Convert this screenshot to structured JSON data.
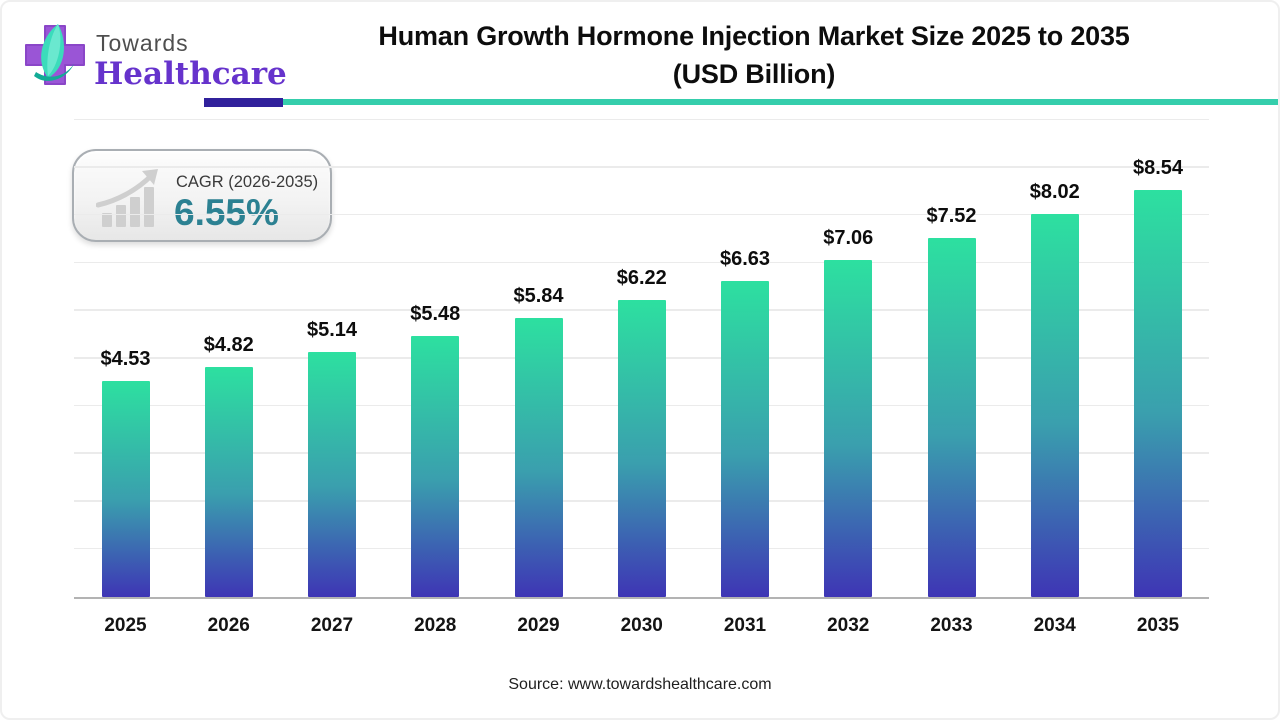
{
  "header": {
    "logo_line1": "Towards",
    "logo_line2": "Healthcare",
    "title_line1": "Human Growth Hormone Injection Market Size 2025 to 2035",
    "title_line2": "(USD Billion)"
  },
  "badge": {
    "label": "CAGR (2026-2035)",
    "value": "6.55%"
  },
  "chart_data": {
    "type": "bar",
    "title": "Human Growth Hormone Injection Market Size 2025 to 2035 (USD Billion)",
    "categories": [
      "2025",
      "2026",
      "2027",
      "2028",
      "2029",
      "2030",
      "2031",
      "2032",
      "2033",
      "2034",
      "2035"
    ],
    "values": [
      4.53,
      4.82,
      5.14,
      5.48,
      5.84,
      6.22,
      6.63,
      7.06,
      7.52,
      8.02,
      8.54
    ],
    "value_prefix": "$",
    "value_decimals": 2,
    "xlabel": "",
    "ylabel": "",
    "ylim": [
      0,
      10
    ],
    "grid_step": 1,
    "grid": "horizontal",
    "legend": "none",
    "bar_gradient_top": "#2de0a0",
    "bar_gradient_mid": "#3a9fae",
    "bar_gradient_bottom": "#3e35b5"
  },
  "source": {
    "text": "Source: www.towardshealthcare.com"
  },
  "colors": {
    "rule_purple": "#31219c",
    "rule_teal": "#35ceac",
    "badge_value_teal": "#2c8192",
    "logo_cross_purple": "#9a55d6",
    "logo_leaf_teal": "#3bdcbb",
    "logo_swoosh_teal": "#12ab96",
    "logo_wordmark_purple": "#6633cc",
    "gridline": "#ebebeb",
    "axis_line": "#b3b3b3"
  }
}
